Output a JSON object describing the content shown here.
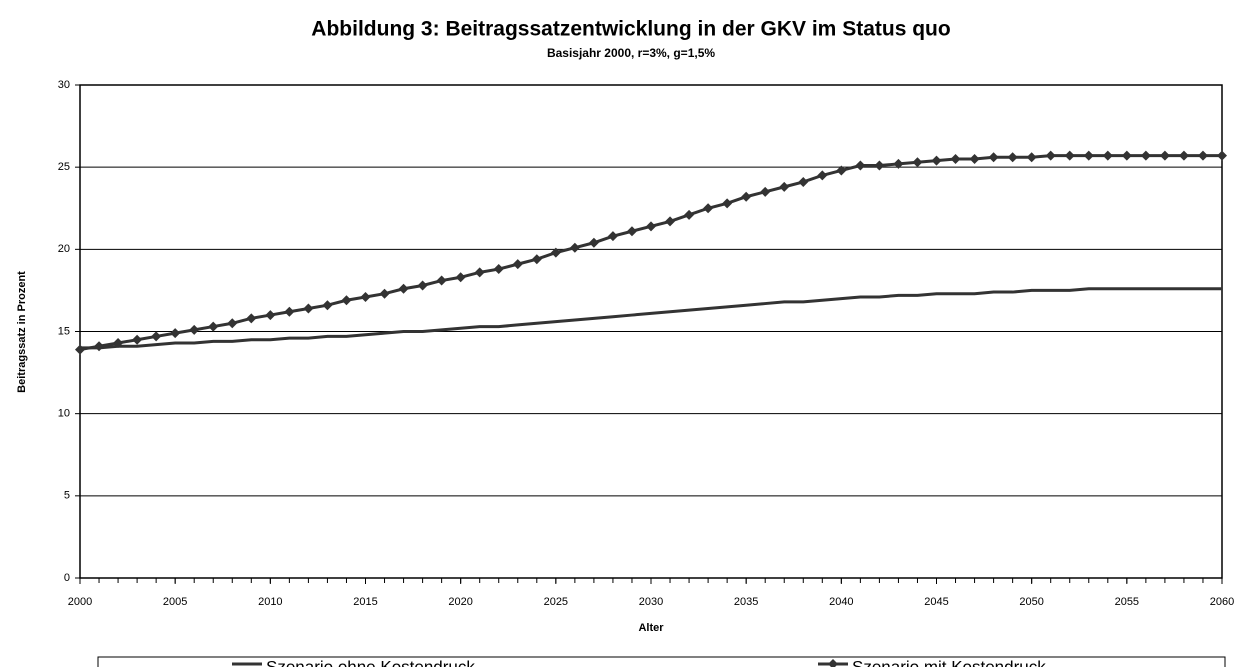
{
  "chart_data": {
    "type": "line",
    "title": "Abbildung 3: Beitragssatzentwicklung in der GKV im Status quo",
    "subtitle": "Basisjahr 2000, r=3%, g=1,5%",
    "x_label": "Alter",
    "y_label": "Beitragssatz in Prozent",
    "x": [
      2000,
      2001,
      2002,
      2003,
      2004,
      2005,
      2006,
      2007,
      2008,
      2009,
      2010,
      2011,
      2012,
      2013,
      2014,
      2015,
      2016,
      2017,
      2018,
      2019,
      2020,
      2021,
      2022,
      2023,
      2024,
      2025,
      2026,
      2027,
      2028,
      2029,
      2030,
      2031,
      2032,
      2033,
      2034,
      2035,
      2036,
      2037,
      2038,
      2039,
      2040,
      2041,
      2042,
      2043,
      2044,
      2045,
      2046,
      2047,
      2048,
      2049,
      2050,
      2051,
      2052,
      2053,
      2054,
      2055,
      2056,
      2057,
      2058,
      2059,
      2060
    ],
    "series": [
      {
        "name": "Szenario ohne Kostendruck",
        "color": "#333333",
        "values": [
          14.0,
          14.0,
          14.1,
          14.1,
          14.2,
          14.3,
          14.3,
          14.4,
          14.4,
          14.5,
          14.5,
          14.6,
          14.6,
          14.7,
          14.7,
          14.8,
          14.9,
          15.0,
          15.0,
          15.1,
          15.2,
          15.3,
          15.3,
          15.4,
          15.5,
          15.6,
          15.7,
          15.8,
          15.9,
          16.0,
          16.1,
          16.2,
          16.3,
          16.4,
          16.5,
          16.6,
          16.7,
          16.8,
          16.8,
          16.9,
          17.0,
          17.1,
          17.1,
          17.2,
          17.2,
          17.3,
          17.3,
          17.3,
          17.4,
          17.4,
          17.5,
          17.5,
          17.5,
          17.6,
          17.6,
          17.6,
          17.6,
          17.6,
          17.6,
          17.6,
          17.6
        ]
      },
      {
        "name": "Szenario mit Kostendruck",
        "color": "#333333",
        "marker": "diamond",
        "values": [
          13.9,
          14.1,
          14.3,
          14.5,
          14.7,
          14.9,
          15.1,
          15.3,
          15.5,
          15.8,
          16.0,
          16.2,
          16.4,
          16.6,
          16.9,
          17.1,
          17.3,
          17.6,
          17.8,
          18.1,
          18.3,
          18.6,
          18.8,
          19.1,
          19.4,
          19.8,
          20.1,
          20.4,
          20.8,
          21.1,
          21.4,
          21.7,
          22.1,
          22.5,
          22.8,
          23.2,
          23.5,
          23.8,
          24.1,
          24.5,
          24.8,
          25.1,
          25.1,
          25.2,
          25.3,
          25.4,
          25.5,
          25.5,
          25.6,
          25.6,
          25.6,
          25.7,
          25.7,
          25.7,
          25.7,
          25.7,
          25.7,
          25.7,
          25.7,
          25.7,
          25.7
        ]
      }
    ],
    "xlim": [
      2000,
      2060
    ],
    "xticks": [
      2000,
      2005,
      2010,
      2015,
      2020,
      2025,
      2030,
      2035,
      2040,
      2045,
      2050,
      2055,
      2060
    ],
    "ylim": [
      0,
      30
    ],
    "yticks": [
      0,
      5,
      10,
      15,
      20,
      25,
      30
    ],
    "grid": true,
    "legend": "bottom"
  }
}
